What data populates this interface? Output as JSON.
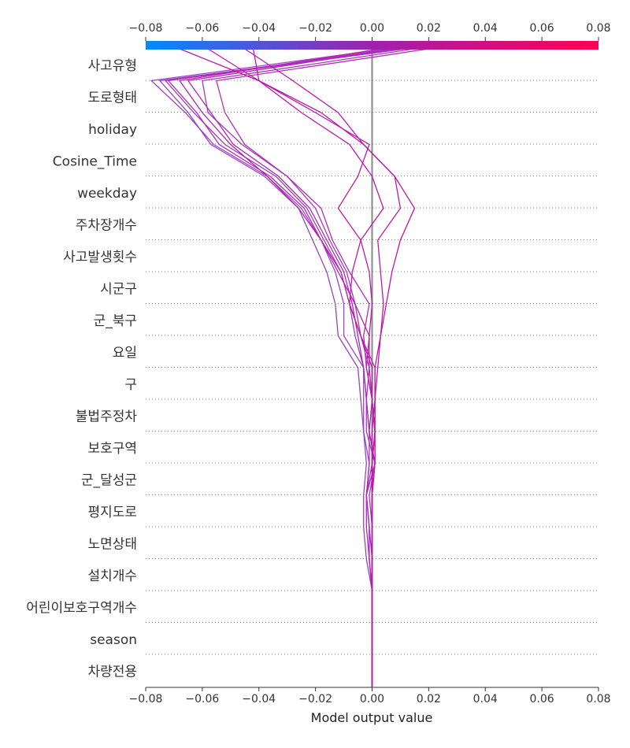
{
  "chart_data": {
    "type": "line",
    "subtype": "shap-decision-plot",
    "xlabel": "Model output value",
    "xlim": [
      -0.08,
      0.08
    ],
    "x_ticks": [
      -0.08,
      -0.06,
      -0.04,
      -0.02,
      0.0,
      0.02,
      0.04,
      0.06,
      0.08
    ],
    "x_tick_labels": [
      "−0.08",
      "−0.06",
      "−0.04",
      "−0.02",
      "0.00",
      "0.02",
      "0.04",
      "0.06",
      "0.08"
    ],
    "base_value": 0.0,
    "features": [
      "사고유형",
      "도로형태",
      "holiday",
      "Cosine_Time",
      "weekday",
      "주차장개수",
      "사고발생횟수",
      "시군구",
      "군_북구",
      "요일",
      "구",
      "불법주정차",
      "보호구역",
      "군_달성군",
      "평지도로",
      "노면상태",
      "설치개수",
      "어린이보호구역개수",
      "season",
      "차량전용"
    ],
    "colormap": {
      "low": "#008bfb",
      "mid": "#a020b0",
      "high": "#ff0052"
    },
    "grid": "dotted-horizontal",
    "series": [
      {
        "color": "#9b45c8",
        "values": [
          0.0,
          0.0,
          0.0,
          0.0,
          -0.001,
          -0.001,
          -0.002,
          -0.001,
          -0.003,
          -0.003,
          -0.003,
          -0.01,
          -0.01,
          -0.013,
          -0.018,
          -0.025,
          -0.037,
          -0.056,
          -0.066,
          -0.078,
          0.005
        ]
      },
      {
        "color": "#9a40c4",
        "values": [
          0.0,
          0.0,
          0.0,
          0.0,
          -0.002,
          -0.003,
          -0.003,
          -0.002,
          -0.003,
          -0.004,
          -0.005,
          -0.012,
          -0.013,
          -0.016,
          -0.021,
          -0.026,
          -0.038,
          -0.057,
          -0.065,
          -0.075,
          0.01
        ]
      },
      {
        "color": "#a03cc0",
        "values": [
          0.0,
          0.0,
          0.0,
          0.0,
          -0.001,
          -0.001,
          -0.002,
          0.001,
          -0.001,
          -0.002,
          -0.003,
          -0.006,
          -0.008,
          -0.011,
          -0.017,
          -0.023,
          -0.034,
          -0.052,
          -0.063,
          -0.073,
          0.012
        ]
      },
      {
        "color": "#a838bc",
        "values": [
          0.0,
          0.0,
          0.0,
          0.0,
          0.0,
          0.0,
          -0.001,
          0.001,
          -0.002,
          -0.002,
          -0.001,
          -0.004,
          -0.006,
          -0.009,
          -0.015,
          -0.02,
          -0.03,
          -0.046,
          -0.058,
          -0.06,
          0.015
        ]
      },
      {
        "color": "#b230b6",
        "values": [
          0.0,
          0.0,
          0.0,
          0.0,
          0.0,
          -0.001,
          -0.002,
          0.0,
          0.001,
          0.0,
          -0.002,
          -0.003,
          -0.001,
          -0.008,
          -0.014,
          -0.018,
          -0.03,
          -0.045,
          -0.052,
          -0.055,
          0.02
        ]
      },
      {
        "color": "#b428b2",
        "values": [
          0.0,
          0.0,
          0.0,
          0.0,
          0.0,
          0.0,
          0.0,
          0.001,
          0.001,
          0.001,
          0.001,
          -0.004,
          -0.008,
          -0.011,
          -0.018,
          -0.024,
          -0.036,
          -0.054,
          -0.062,
          -0.072,
          0.007
        ]
      },
      {
        "color": "#b820b0",
        "values": [
          0.0,
          0.0,
          0.0,
          0.0,
          0.0,
          0.0,
          0.0,
          0.001,
          -0.001,
          0.0,
          -0.002,
          -0.001,
          -0.006,
          -0.012,
          -0.018,
          -0.026,
          -0.037,
          -0.05,
          -0.06,
          -0.068,
          0.003
        ]
      },
      {
        "color": "#a92ab8",
        "values": [
          0.0,
          0.0,
          0.0,
          0.0,
          -0.001,
          -0.002,
          -0.002,
          -0.001,
          -0.001,
          -0.002,
          -0.003,
          -0.005,
          -0.007,
          -0.01,
          -0.016,
          -0.022,
          -0.033,
          -0.049,
          -0.057,
          -0.065,
          0.008
        ]
      },
      {
        "color": "#b71cac",
        "values": [
          0.0,
          0.0,
          0.0,
          0.0,
          0.0,
          0.0,
          0.0,
          0.0,
          0.001,
          0.0,
          -0.001,
          -0.001,
          0.0,
          -0.001,
          -0.004,
          -0.012,
          -0.005,
          -0.001,
          -0.02,
          -0.04,
          -0.042
        ]
      },
      {
        "color": "#bb1aaa",
        "values": [
          0.0,
          0.0,
          0.0,
          0.0,
          0.0,
          0.0,
          0.0,
          0.0,
          0.0,
          0.001,
          0.001,
          0.003,
          0.004,
          0.003,
          0.002,
          0.01,
          0.008,
          -0.003,
          -0.012,
          -0.028,
          -0.045
        ]
      },
      {
        "color": "#c014a6",
        "values": [
          0.0,
          0.0,
          0.0,
          0.0,
          0.0,
          0.0,
          0.0,
          0.0,
          0.001,
          0.001,
          0.002,
          0.003,
          0.005,
          0.007,
          0.01,
          0.015,
          0.008,
          -0.003,
          -0.018,
          -0.04,
          -0.068
        ]
      },
      {
        "color": "#bd18a8",
        "values": [
          0.0,
          0.0,
          0.0,
          0.0,
          0.0,
          0.0,
          0.0,
          0.001,
          0.001,
          0.0,
          0.0,
          -0.004,
          -0.008,
          -0.007,
          -0.004,
          0.004,
          0.0,
          -0.008,
          -0.025,
          -0.04,
          -0.058
        ]
      }
    ]
  }
}
